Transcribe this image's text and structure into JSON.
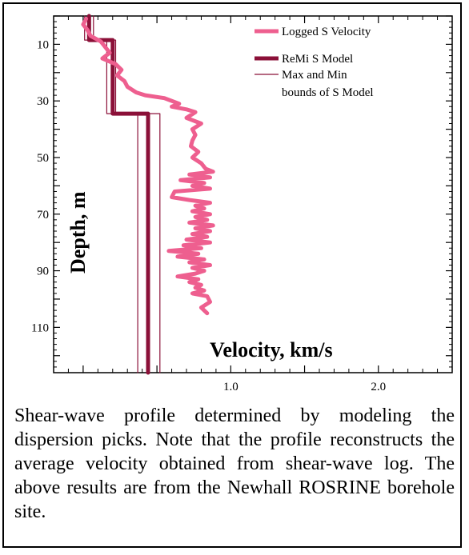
{
  "chart_data": {
    "type": "line",
    "xlabel": "Velocity, km/s",
    "ylabel": "Depth, m",
    "xlim": [
      -0.2,
      2.5
    ],
    "ylim": [
      126,
      0
    ],
    "x_ticks": [
      1.0,
      2.0
    ],
    "x_tick_labels": [
      "1.0",
      "2.0"
    ],
    "y_ticks": [
      10,
      30,
      50,
      70,
      90,
      110
    ],
    "y_tick_labels": [
      "10",
      "30",
      "50",
      "70",
      "90",
      "110"
    ],
    "legend": [
      {
        "label": "Logged S Velocity",
        "color": "#ee5f8f"
      },
      {
        "label": "ReMi S Model",
        "color": "#8b1038"
      },
      {
        "label": "Max and Min bounds of S Model",
        "color": "#8b1038"
      }
    ],
    "series": [
      {
        "name": "Logged S Velocity",
        "color": "#ee5f8f",
        "points": [
          [
            0.02,
            1
          ],
          [
            0.0,
            3
          ],
          [
            0.03,
            5
          ],
          [
            0.05,
            7
          ],
          [
            0.12,
            9
          ],
          [
            0.15,
            11
          ],
          [
            0.18,
            13
          ],
          [
            0.13,
            15
          ],
          [
            0.22,
            17
          ],
          [
            0.26,
            19
          ],
          [
            0.23,
            21
          ],
          [
            0.28,
            23
          ],
          [
            0.3,
            25
          ],
          [
            0.36,
            27
          ],
          [
            0.42,
            28
          ],
          [
            0.55,
            29
          ],
          [
            0.6,
            30
          ],
          [
            0.65,
            31
          ],
          [
            0.6,
            32
          ],
          [
            0.7,
            33
          ],
          [
            0.76,
            34
          ],
          [
            0.7,
            36
          ],
          [
            0.8,
            38
          ],
          [
            0.74,
            40
          ],
          [
            0.76,
            42
          ],
          [
            0.74,
            44
          ],
          [
            0.73,
            46
          ],
          [
            0.78,
            48
          ],
          [
            0.74,
            50
          ],
          [
            0.8,
            52
          ],
          [
            0.83,
            54
          ],
          [
            0.88,
            55
          ],
          [
            0.72,
            56
          ],
          [
            0.86,
            57
          ],
          [
            0.66,
            58
          ],
          [
            0.82,
            59
          ],
          [
            0.74,
            60
          ],
          [
            0.86,
            61
          ],
          [
            0.62,
            62
          ],
          [
            0.6,
            64
          ],
          [
            0.72,
            65
          ],
          [
            0.86,
            66
          ],
          [
            0.76,
            67
          ],
          [
            0.82,
            68
          ],
          [
            0.74,
            69
          ],
          [
            0.86,
            70
          ],
          [
            0.76,
            71
          ],
          [
            0.84,
            72
          ],
          [
            0.72,
            73
          ],
          [
            0.88,
            74
          ],
          [
            0.76,
            75
          ],
          [
            0.86,
            76
          ],
          [
            0.74,
            77
          ],
          [
            0.84,
            78
          ],
          [
            0.7,
            79
          ],
          [
            0.86,
            80
          ],
          [
            0.68,
            81
          ],
          [
            0.8,
            82
          ],
          [
            0.58,
            83
          ],
          [
            0.78,
            84
          ],
          [
            0.64,
            85
          ],
          [
            0.82,
            86
          ],
          [
            0.72,
            87
          ],
          [
            0.86,
            88
          ],
          [
            0.74,
            89
          ],
          [
            0.82,
            90
          ],
          [
            0.76,
            91
          ],
          [
            0.64,
            92
          ],
          [
            0.78,
            93
          ],
          [
            0.72,
            94
          ],
          [
            0.8,
            95
          ],
          [
            0.76,
            96
          ],
          [
            0.82,
            97
          ],
          [
            0.74,
            98
          ],
          [
            0.84,
            99
          ],
          [
            0.86,
            101
          ],
          [
            0.8,
            103
          ],
          [
            0.84,
            105
          ]
        ]
      },
      {
        "name": "ReMi S Model",
        "color": "#8b1038",
        "points": [
          [
            0.04,
            0
          ],
          [
            0.04,
            8.5
          ],
          [
            0.2,
            8.5
          ],
          [
            0.2,
            34.5
          ],
          [
            0.44,
            34.5
          ],
          [
            0.44,
            126
          ]
        ]
      },
      {
        "name": "Max",
        "color": "#8b1038",
        "points": [
          [
            0.07,
            0
          ],
          [
            0.07,
            8.5
          ],
          [
            0.22,
            8.5
          ],
          [
            0.22,
            34.5
          ],
          [
            0.52,
            34.5
          ],
          [
            0.52,
            126
          ]
        ]
      },
      {
        "name": "Min",
        "color": "#8b1038",
        "points": [
          [
            0.01,
            0
          ],
          [
            0.01,
            8.5
          ],
          [
            0.16,
            8.5
          ],
          [
            0.16,
            34.5
          ],
          [
            0.37,
            34.5
          ],
          [
            0.37,
            126
          ]
        ]
      }
    ]
  },
  "caption": "Shear-wave profile determined by modeling the dispersion picks. Note that the profile reconstructs the average velocity obtained from shear-wave log. The above results are from the Newhall ROSRINE borehole site."
}
